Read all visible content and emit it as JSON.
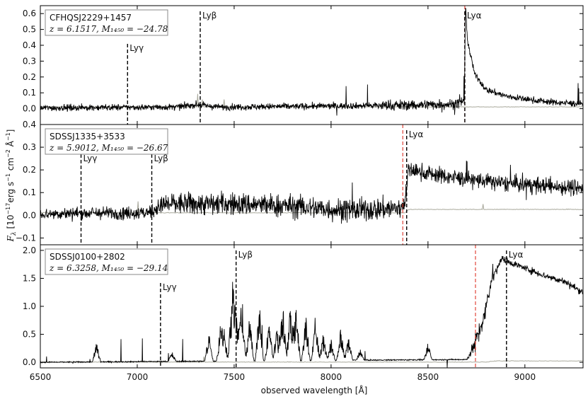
{
  "chart_data": {
    "type": "line",
    "xlabel": "observed wavelength [Å]",
    "ylabel": "F_λ [10^-17 erg s^-1 cm^-2 Å^-1]",
    "xlim": [
      6500,
      9300
    ],
    "x_ticks": [
      "6500",
      "7000",
      "7500",
      "8000",
      "8500",
      "9000"
    ],
    "x_tick_values": [
      6500,
      7000,
      7500,
      8000,
      8500,
      9000
    ],
    "colors": {
      "flux": "#000000",
      "noise": "#a9a99c",
      "redshift_line": "#e0453a",
      "lines": "#000000"
    },
    "panels": [
      {
        "name": "CFHQSJ2229+1457",
        "info": "z = 6.1517, M₁₄₅₀ = −24.78",
        "ylim": [
          -0.1,
          0.65
        ],
        "y_ticks": [
          "0.0",
          "0.1",
          "0.2",
          "0.3",
          "0.4",
          "0.5",
          "0.6"
        ],
        "y_tick_values": [
          0.0,
          0.1,
          0.2,
          0.3,
          0.4,
          0.5,
          0.6
        ],
        "lines": [
          {
            "label": "Lyγ",
            "x": 6950
          },
          {
            "label": "Lyβ",
            "x": 7325
          },
          {
            "label": "Lyα",
            "x": 8690
          }
        ],
        "red_line": 8690,
        "flux_keypoints": [
          [
            6500,
            0.005
          ],
          [
            7200,
            0.01
          ],
          [
            7300,
            0.025
          ],
          [
            7420,
            0.01
          ],
          [
            8300,
            0.02
          ],
          [
            8650,
            0.03
          ],
          [
            8688,
            0.05
          ],
          [
            8693,
            0.65
          ],
          [
            8705,
            0.42
          ],
          [
            8740,
            0.22
          ],
          [
            8800,
            0.12
          ],
          [
            8900,
            0.08
          ],
          [
            9000,
            0.06
          ],
          [
            9150,
            0.04
          ],
          [
            9300,
            0.03
          ]
        ],
        "flux_noise": [
          [
            6500,
            0.02
          ],
          [
            8200,
            0.02
          ],
          [
            8300,
            0.035
          ],
          [
            8700,
            0.03
          ],
          [
            8710,
            0.02
          ],
          [
            9300,
            0.02
          ]
        ],
        "noise_level": [
          [
            6500,
            0.01
          ],
          [
            8690,
            0.01
          ],
          [
            9300,
            0.01
          ]
        ]
      },
      {
        "name": "SDSSJ1335+3533",
        "info": "z = 5.9012, M₁₄₅₀ = −26.67",
        "ylim": [
          -0.13,
          0.4
        ],
        "y_ticks": [
          "−0.1",
          "0.0",
          "0.1",
          "0.2",
          "0.3"
        ],
        "y_tick_values": [
          -0.1,
          0.0,
          0.1,
          0.2,
          0.3
        ],
        "top_overlap_tick": "0.4",
        "lines": [
          {
            "label": "Lyγ",
            "x": 6710
          },
          {
            "label": "Lyβ",
            "x": 7075
          },
          {
            "label": "Lyα",
            "x": 8390
          }
        ],
        "red_line": 8370,
        "flux_keypoints": [
          [
            6500,
            0.005
          ],
          [
            6750,
            0.01
          ],
          [
            7050,
            0.01
          ],
          [
            7150,
            0.05
          ],
          [
            7500,
            0.05
          ],
          [
            7800,
            0.04
          ],
          [
            8100,
            0.02
          ],
          [
            8300,
            0.03
          ],
          [
            8360,
            0.03
          ],
          [
            8385,
            0.08
          ],
          [
            8400,
            0.2
          ],
          [
            8600,
            0.17
          ],
          [
            8900,
            0.14
          ],
          [
            9300,
            0.12
          ]
        ],
        "flux_noise": [
          [
            6500,
            0.025
          ],
          [
            7100,
            0.03
          ],
          [
            7150,
            0.05
          ],
          [
            8370,
            0.05
          ],
          [
            8400,
            0.035
          ],
          [
            9300,
            0.035
          ]
        ],
        "noise_level": [
          [
            6500,
            0.01
          ],
          [
            8380,
            0.01
          ],
          [
            8400,
            0.025
          ],
          [
            9300,
            0.025
          ]
        ]
      },
      {
        "name": "SDSSJ0100+2802",
        "info": "z = 6.3258, M₁₄₅₀ = −29.14",
        "ylim": [
          -0.1,
          2.1
        ],
        "y_ticks": [
          "0.0",
          "0.5",
          "1.0",
          "1.5",
          "2.0"
        ],
        "y_tick_values": [
          0.0,
          0.5,
          1.0,
          1.5,
          2.0
        ],
        "lines": [
          {
            "label": "Lyγ",
            "x": 7120
          },
          {
            "label": "Lyβ",
            "x": 7510
          },
          {
            "label": "Lyα",
            "x": 8905
          }
        ],
        "red_line": 8745,
        "flux_keypoints": [
          [
            6500,
            0.0
          ],
          [
            8700,
            0.05
          ],
          [
            8740,
            0.3
          ],
          [
            8790,
            0.8
          ],
          [
            8830,
            1.5
          ],
          [
            8880,
            1.85
          ],
          [
            8950,
            1.75
          ],
          [
            9100,
            1.55
          ],
          [
            9200,
            1.45
          ],
          [
            9300,
            1.25
          ]
        ],
        "flux_noise": [
          [
            6500,
            0.01
          ],
          [
            8700,
            0.01
          ],
          [
            8750,
            0.2
          ],
          [
            8880,
            0.06
          ],
          [
            9300,
            0.06
          ]
        ],
        "noise_level": [
          [
            6500,
            0.0
          ],
          [
            8800,
            0.0
          ],
          [
            8850,
            0.02
          ],
          [
            9300,
            0.02
          ]
        ],
        "spikes": [
          [
            6790,
            0.36
          ],
          [
            7180,
            0.17
          ],
          [
            7370,
            0.6
          ],
          [
            7430,
            0.7
          ],
          [
            7450,
            0.55
          ],
          [
            7490,
            1.45
          ],
          [
            7510,
            0.9
          ],
          [
            7540,
            1.3
          ],
          [
            7580,
            0.95
          ],
          [
            7630,
            1.05
          ],
          [
            7680,
            0.8
          ],
          [
            7720,
            0.6
          ],
          [
            7750,
            1.2
          ],
          [
            7790,
            1.15
          ],
          [
            7820,
            1.05
          ],
          [
            7870,
            0.85
          ],
          [
            7920,
            0.9
          ],
          [
            7960,
            0.5
          ],
          [
            8000,
            0.4
          ],
          [
            8050,
            0.6
          ],
          [
            8090,
            0.45
          ],
          [
            8150,
            0.2
          ],
          [
            8500,
            0.3
          ]
        ]
      }
    ]
  }
}
